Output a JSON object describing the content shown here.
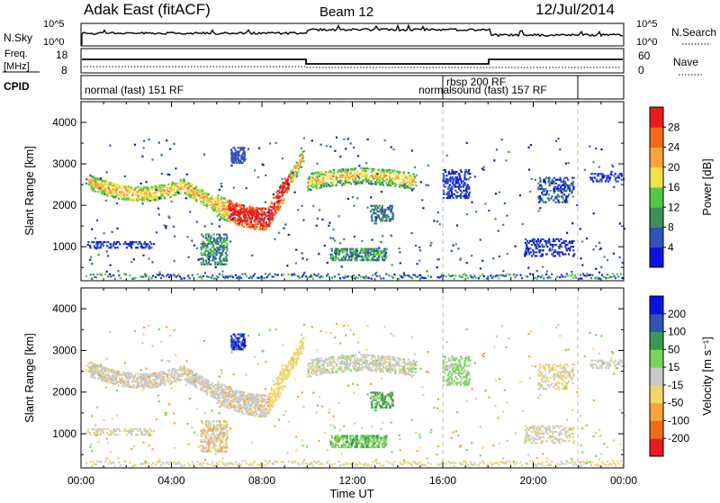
{
  "header": {
    "title": "Adak East (fitACF)",
    "beam": "Beam 12",
    "date": "12/Jul/2014"
  },
  "top_panels": {
    "nsky_label": "N.Sky",
    "nsky_ticks": [
      "10^5",
      "10^0"
    ],
    "nsearch_label": "N.Search",
    "freq_label_1": "Freq.",
    "freq_label_2": "[MHz]",
    "freq_ticks": [
      "18",
      "8"
    ],
    "nave_ticks": [
      "60",
      "0"
    ],
    "nave_label": "Nave",
    "cpid_label": "CPID",
    "cpid_entries": [
      {
        "text": "normal (fast) 151 RF"
      },
      {
        "text": "rbsp 200 RF"
      },
      {
        "text": "normalsound (fast) 157 RF"
      }
    ]
  },
  "colors": {
    "power": [
      "#0a14e0",
      "#2e54b8",
      "#3e8f5a",
      "#55c842",
      "#f0e24a",
      "#f7a43a",
      "#f26b1c",
      "#e41d1d"
    ],
    "velocity": [
      "#e41d1d",
      "#f26b1c",
      "#f7a43a",
      "#f1d66a",
      "#c9c9c6",
      "#7bd45a",
      "#3a9a50",
      "#2e54b8",
      "#0a14e0"
    ]
  },
  "chart_data": [
    {
      "type": "heatmap",
      "ylabel": "Slant Range [km]",
      "ylim": [
        180,
        4500
      ],
      "yticks": [
        "1000",
        "2000",
        "3000",
        "4000"
      ],
      "colorbar_label": "Power [dB]",
      "colorbar_ticks": [
        "28",
        "24",
        "20",
        "16",
        "12",
        "8",
        "4"
      ],
      "colorbar_range": [
        0,
        32
      ]
    },
    {
      "type": "heatmap",
      "ylabel": "Slant Range [km]",
      "ylim": [
        180,
        4500
      ],
      "yticks": [
        "1000",
        "2000",
        "3000",
        "4000"
      ],
      "colorbar_label": "Velocity [m s⁻¹]",
      "colorbar_ticks": [
        "200",
        "100",
        "50",
        "15",
        "-15",
        "-50",
        "-100",
        "-200"
      ],
      "xlabel": "Time UT",
      "xticks": [
        "00:00",
        "04:00",
        "08:00",
        "12:00",
        "16:00",
        "20:00",
        "00:00"
      ]
    }
  ]
}
